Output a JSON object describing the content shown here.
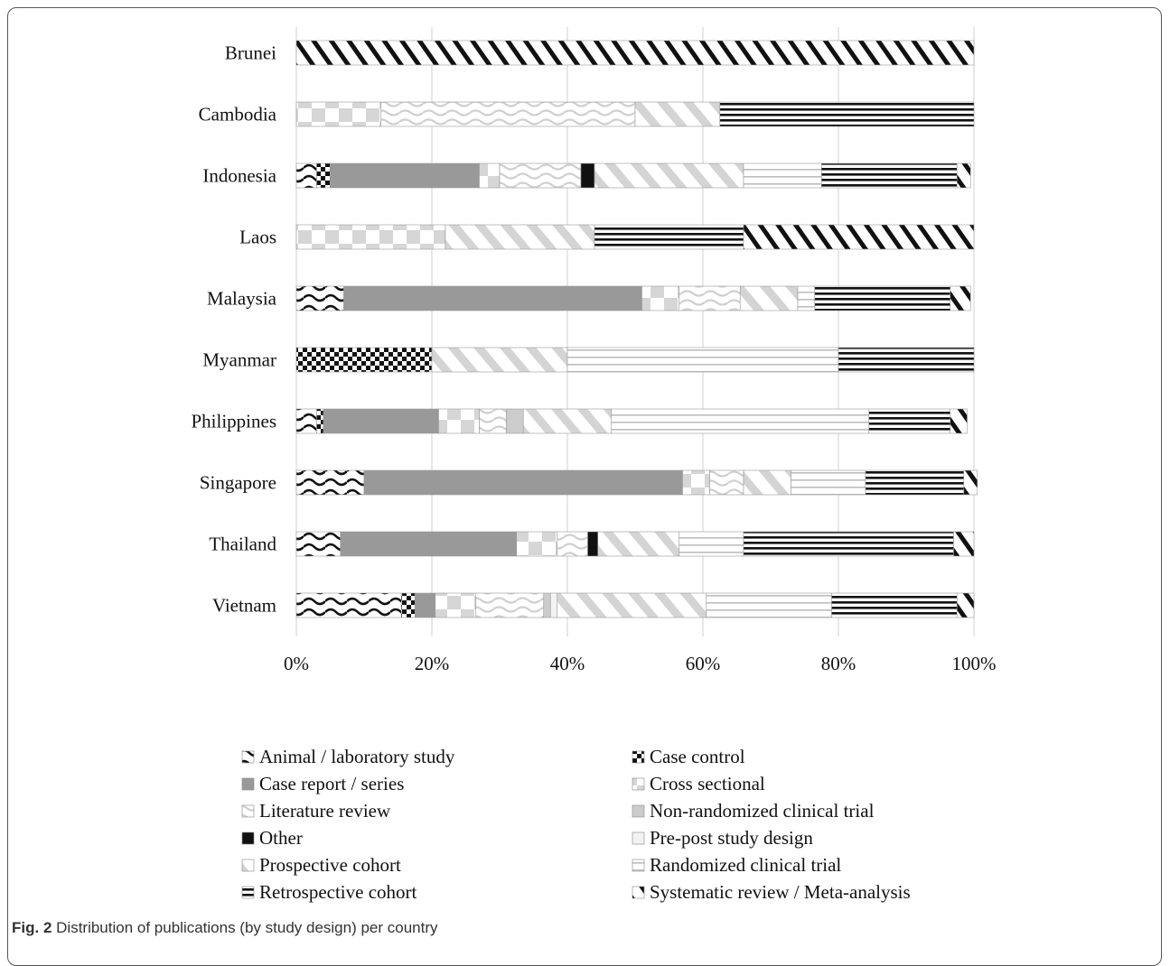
{
  "caption": {
    "fig": "Fig. 2",
    "text": "Distribution of publications (by study design) per country"
  },
  "chart_data": {
    "type": "bar",
    "orientation": "horizontal",
    "stacked": true,
    "normalized": "100%",
    "categories": [
      "Brunei",
      "Cambodia",
      "Indonesia",
      "Laos",
      "Malaysia",
      "Myanmar",
      "Philippines",
      "Singapore",
      "Thailand",
      "Vietnam"
    ],
    "xticks": [
      "0%",
      "20%",
      "40%",
      "60%",
      "80%",
      "100%"
    ],
    "xlim": [
      0,
      100
    ],
    "grid": "vertical",
    "legend_position": "bottom",
    "series": [
      {
        "name": "Animal / laboratory study",
        "pattern": "wave-bold",
        "values": [
          0,
          0,
          3,
          0,
          7,
          0,
          3,
          10,
          6.5,
          15.5
        ]
      },
      {
        "name": "Case control",
        "pattern": "checker-bold",
        "values": [
          0,
          0,
          2,
          0,
          0,
          20,
          1,
          0,
          0,
          2
        ]
      },
      {
        "name": "Case report / series",
        "pattern": "solid-gray",
        "values": [
          0,
          0,
          22,
          0,
          44,
          0,
          17,
          47,
          26,
          3
        ]
      },
      {
        "name": "Cross sectional",
        "pattern": "checker-light",
        "values": [
          0,
          12.5,
          3,
          22,
          5.5,
          0,
          6,
          4,
          6,
          6
        ]
      },
      {
        "name": "Literature review",
        "pattern": "wave-light",
        "values": [
          0,
          37.5,
          12,
          0,
          9,
          0,
          4,
          5,
          4.5,
          10
        ]
      },
      {
        "name": "Non-randomized clinical trial",
        "pattern": "solid-lightgray",
        "values": [
          0,
          0,
          0,
          0,
          0,
          0,
          2.5,
          0,
          0,
          1
        ]
      },
      {
        "name": "Other",
        "pattern": "solid-black",
        "values": [
          0,
          0,
          2,
          0,
          0,
          0,
          0,
          0,
          1.5,
          0
        ]
      },
      {
        "name": "Pre-post study design",
        "pattern": "solid-white",
        "values": [
          0,
          0,
          0,
          0,
          0,
          0,
          0,
          0,
          0,
          1
        ]
      },
      {
        "name": "Prospective cohort",
        "pattern": "diag-light",
        "values": [
          0,
          12.5,
          22,
          22,
          8.5,
          20,
          13,
          7,
          12,
          22
        ]
      },
      {
        "name": "Randomized clinical trial",
        "pattern": "hlines-light",
        "values": [
          0,
          0,
          11.5,
          0,
          2.5,
          40,
          38,
          11,
          9.5,
          18.5
        ]
      },
      {
        "name": "Retrospective cohort",
        "pattern": "hlines-bold",
        "values": [
          0,
          37.5,
          20,
          22,
          20,
          20,
          12,
          14.5,
          31,
          18.5
        ]
      },
      {
        "name": "Systematic review / Meta-analysis",
        "pattern": "diag-bold",
        "values": [
          100,
          0,
          2,
          34,
          3,
          0,
          2.5,
          2,
          3,
          2.5
        ]
      }
    ]
  }
}
